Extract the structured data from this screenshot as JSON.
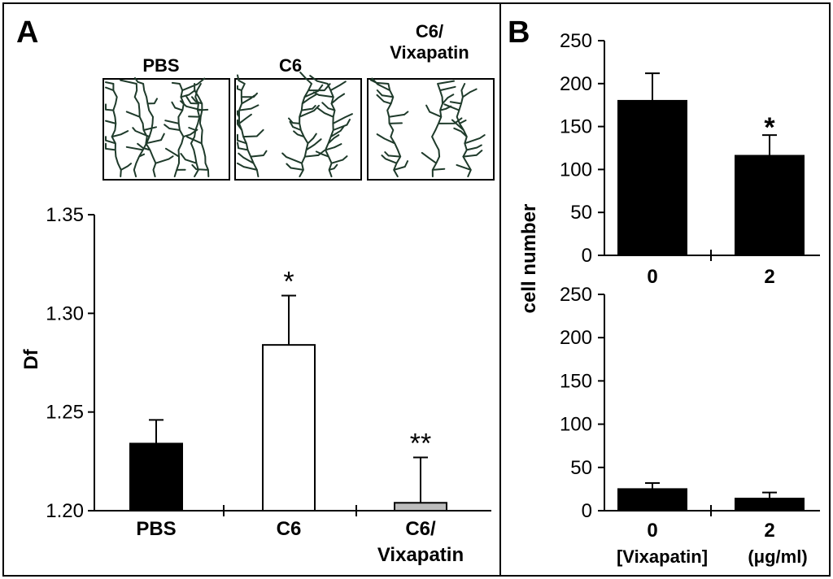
{
  "panels": {
    "a": {
      "letter": "A"
    },
    "b": {
      "letter": "B"
    }
  },
  "micrographs": [
    {
      "label_lines": [
        "PBS"
      ],
      "pattern": "sparse-branching"
    },
    {
      "label_lines": [
        "C6"
      ],
      "pattern": "dense-branching"
    },
    {
      "label_lines": [
        "C6/",
        "Vixapatin"
      ],
      "pattern": "intermediate-branching"
    }
  ],
  "chart_data": [
    {
      "id": "panel-a",
      "type": "bar",
      "title": "",
      "xlabel": "",
      "ylabel": "Df",
      "ylim": [
        1.2,
        1.35
      ],
      "yticks": [
        "1.20",
        "1.25",
        "1.30",
        "1.35"
      ],
      "categories": [
        "PBS",
        "C6",
        "C6/ Vixapatin"
      ],
      "category_lines": [
        [
          "PBS"
        ],
        [
          "C6"
        ],
        [
          "C6/",
          "Vixapatin"
        ]
      ],
      "values": [
        1.234,
        1.284,
        1.204
      ],
      "errors": [
        0.012,
        0.025,
        0.023
      ],
      "bar_colors": [
        "#000000",
        "#ffffff",
        "#bdbdbd"
      ],
      "annotations": [
        "",
        "*",
        "**"
      ]
    },
    {
      "id": "panel-b-top",
      "type": "bar",
      "title": "",
      "ylabel": "cell number",
      "ylim": [
        0,
        250
      ],
      "yticks": [
        "0",
        "50",
        "100",
        "150",
        "200",
        "250"
      ],
      "categories": [
        "0",
        "2"
      ],
      "values": [
        180,
        116
      ],
      "errors": [
        32,
        24
      ],
      "bar_colors": [
        "#000000",
        "#000000"
      ],
      "annotations": [
        "",
        "*"
      ]
    },
    {
      "id": "panel-b-bottom",
      "type": "bar",
      "title": "",
      "ylim": [
        0,
        250
      ],
      "yticks": [
        "0",
        "50",
        "100",
        "150",
        "200",
        "250"
      ],
      "categories": [
        "0",
        "2"
      ],
      "values": [
        25,
        14
      ],
      "errors": [
        7,
        7
      ],
      "bar_colors": [
        "#000000",
        "#000000"
      ],
      "annotations": [
        "",
        ""
      ],
      "xlabel_left": "[Vixapatin]",
      "xlabel_right": "(μg/ml)"
    }
  ]
}
